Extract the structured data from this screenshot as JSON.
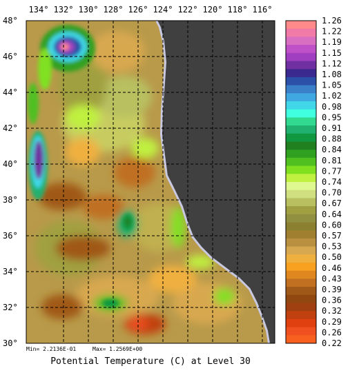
{
  "title": "Potential Temperature (C) at Level 30",
  "stats": {
    "min": "Min= 2.2136E-01",
    "max": "Max= 1.2569E+00"
  },
  "axes": {
    "lon_labels": [
      "134°",
      "132°",
      "130°",
      "128°",
      "126°",
      "124°",
      "122°",
      "120°",
      "118°",
      "116°"
    ],
    "lat_labels": [
      "48°",
      "46°",
      "44°",
      "42°",
      "40°",
      "38°",
      "36°",
      "34°",
      "32°",
      "30°"
    ],
    "lon_values": [
      -134,
      -132,
      -130,
      -128,
      -126,
      -124,
      -122,
      -120,
      -118,
      -116
    ],
    "lat_values": [
      48,
      46,
      44,
      42,
      40,
      38,
      36,
      34,
      32,
      30
    ]
  },
  "colorbar": {
    "labels": [
      "1.26",
      "1.22",
      "1.19",
      "1.15",
      "1.12",
      "1.08",
      "1.05",
      "1.02",
      "0.98",
      "0.95",
      "0.91",
      "0.88",
      "0.84",
      "0.81",
      "0.77",
      "0.74",
      "0.70",
      "0.67",
      "0.64",
      "0.60",
      "0.57",
      "0.53",
      "0.50",
      "0.46",
      "0.43",
      "0.39",
      "0.36",
      "0.32",
      "0.29",
      "0.26",
      "0.22"
    ],
    "colors": [
      "#ff8a8a",
      "#f07aa8",
      "#d96fc0",
      "#c050c8",
      "#a040c0",
      "#7030a0",
      "#3a2a90",
      "#2a50a8",
      "#3a80c8",
      "#40a8e0",
      "#40d8e8",
      "#40ffe0",
      "#30d890",
      "#20b070",
      "#109840",
      "#208020",
      "#30a020",
      "#50c020",
      "#80e020",
      "#c0f040",
      "#e0f890",
      "#d0e080",
      "#b8c060",
      "#a0a040",
      "#909040",
      "#8a8030",
      "#a08030",
      "#b89040",
      "#d8a850",
      "#f0b040",
      "#f8a020",
      "#e08820",
      "#c07020",
      "#a05818",
      "#904810",
      "#a04010",
      "#c04010",
      "#e04010",
      "#f05020",
      "#f86020"
    ]
  },
  "colors": {
    "land": "#404040",
    "coast_fringe": "#c8c8e0",
    "grid": "#000000"
  }
}
